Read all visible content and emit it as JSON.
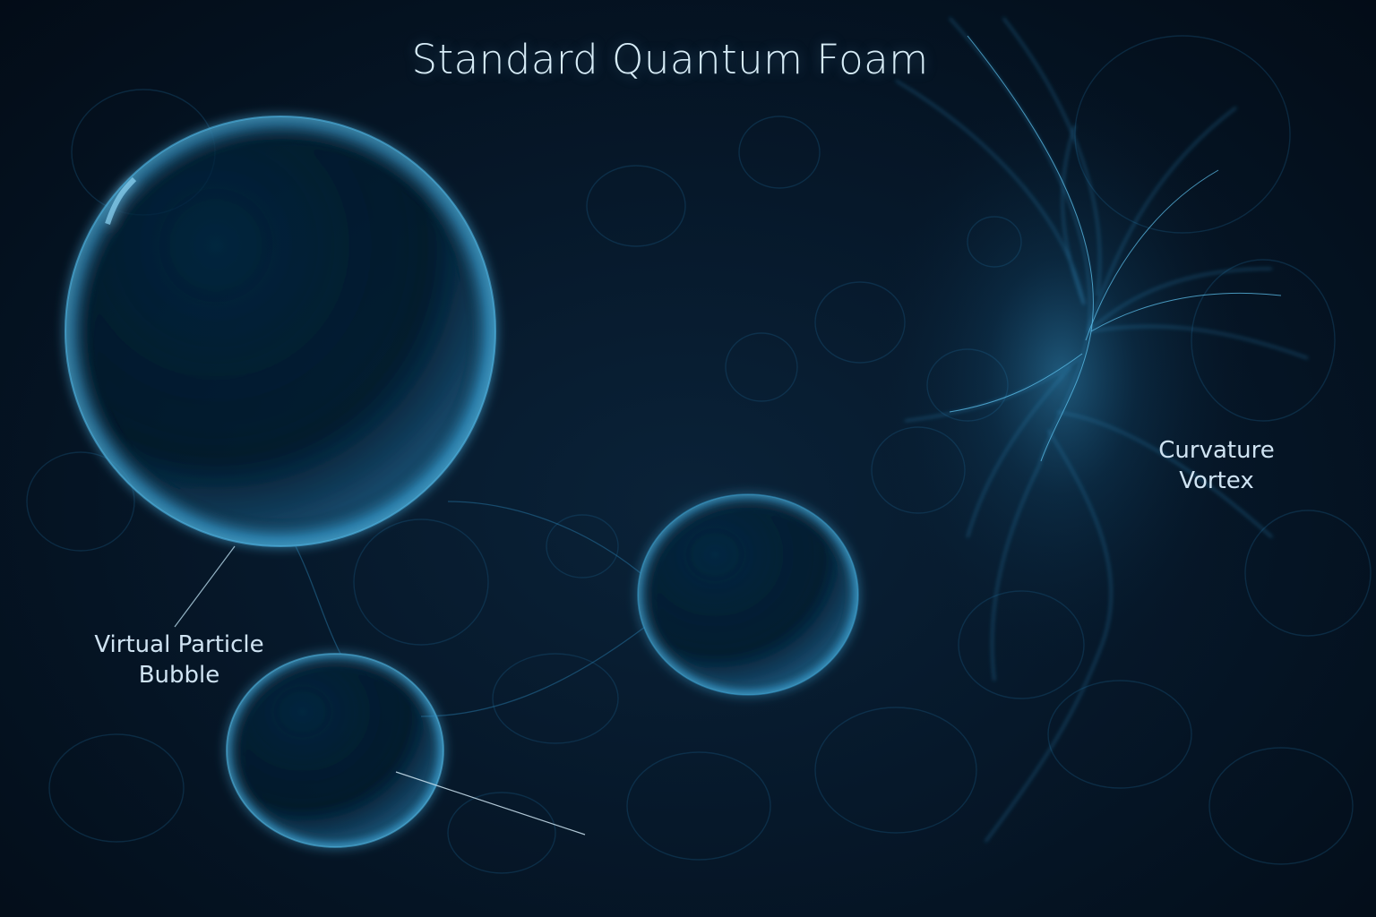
{
  "title": "Standard Quantum Foam",
  "labels": {
    "virtual_particle_bubble": [
      "Virtual Particle",
      "Bubble"
    ],
    "curvature_vortex": [
      "Curvature",
      "Vortex"
    ]
  },
  "colors": {
    "background": "#04111f",
    "bubble_glow": "#3aa3d6",
    "filament": "#2f8fc4",
    "text": "#cfe3f2"
  }
}
